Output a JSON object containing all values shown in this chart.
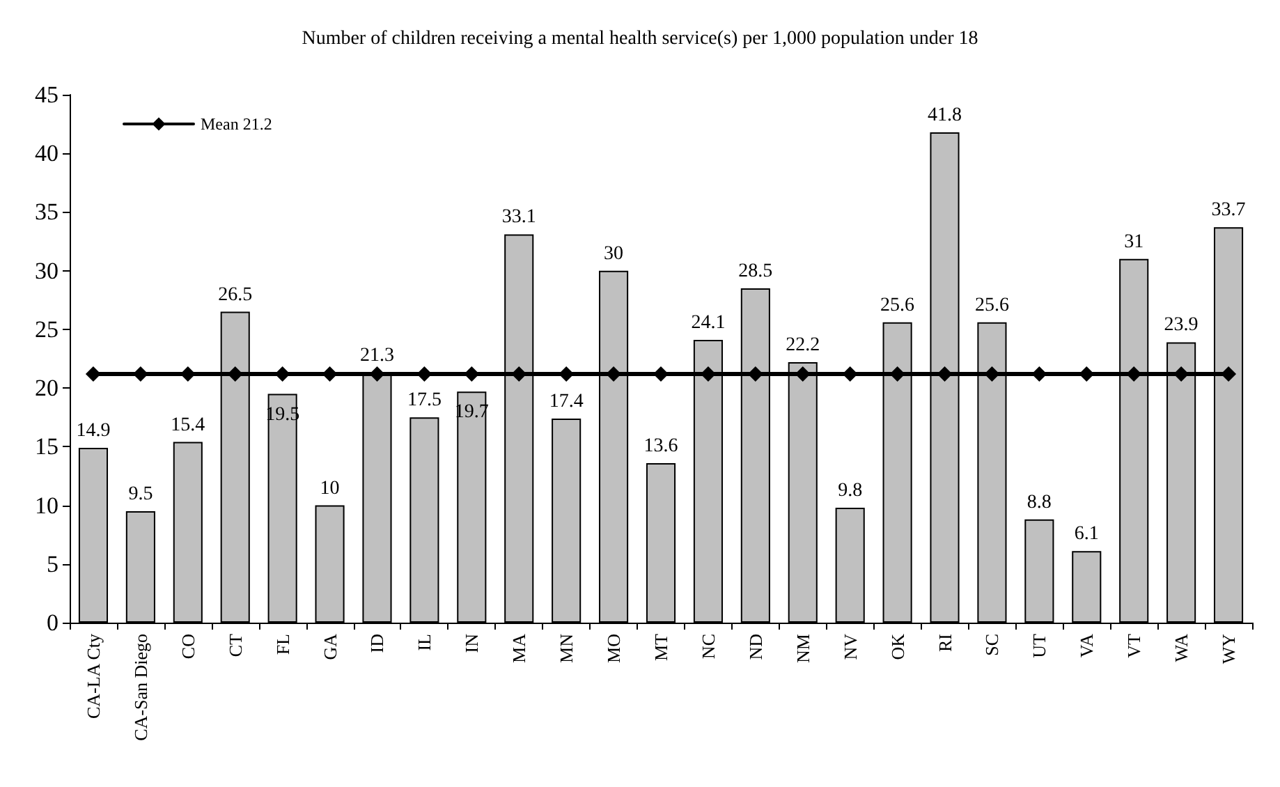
{
  "chart_data": {
    "type": "bar",
    "title": "Number of children receiving a mental health service(s) per 1,000 population under 18",
    "categories": [
      "CA-LA Cty",
      "CA-San Diego",
      "CO",
      "CT",
      "FL",
      "GA",
      "ID",
      "IL",
      "IN",
      "MA",
      "MN",
      "MO",
      "MT",
      "NC",
      "ND",
      "NM",
      "NV",
      "OK",
      "RI",
      "SC",
      "UT",
      "VA",
      "VT",
      "WA",
      "WY"
    ],
    "series": [
      {
        "color": "#c0c0c0",
        "values": [
          14.9,
          9.5,
          15.4,
          26.5,
          19.5,
          10,
          21.3,
          17.5,
          19.7,
          33.1,
          17.4,
          30,
          13.6,
          24.1,
          28.5,
          22.2,
          9.8,
          25.6,
          41.8,
          25.6,
          8.8,
          6.1,
          31,
          23.9,
          33.7
        ],
        "value_labels": [
          "14.9",
          "9.5",
          "15.4",
          "26.5",
          "19.5",
          "10",
          "21.3",
          "17.5",
          "19.7",
          "33.1",
          "17.4",
          "30",
          "13.6",
          "24.1",
          "28.5",
          "22.2",
          "9.8",
          "25.6",
          "41.8",
          "25.6",
          "8.8",
          "6.1",
          "31",
          "23.9",
          "33.7"
        ]
      },
      {
        "type": "line",
        "name": "Mean 21.2",
        "color": "#000000",
        "marker": "diamond",
        "values": [
          21.2,
          21.2,
          21.2,
          21.2,
          21.2,
          21.2,
          21.2,
          21.2,
          21.2,
          21.2,
          21.2,
          21.2,
          21.2,
          21.2,
          21.2,
          21.2,
          21.2,
          21.2,
          21.2,
          21.2,
          21.2,
          21.2,
          21.2,
          21.2,
          21.2
        ]
      }
    ],
    "ylim": [
      0,
      45
    ],
    "yticks": [
      0,
      5,
      10,
      15,
      20,
      25,
      30,
      35,
      40,
      45
    ],
    "grid": false,
    "legend": "top left"
  }
}
